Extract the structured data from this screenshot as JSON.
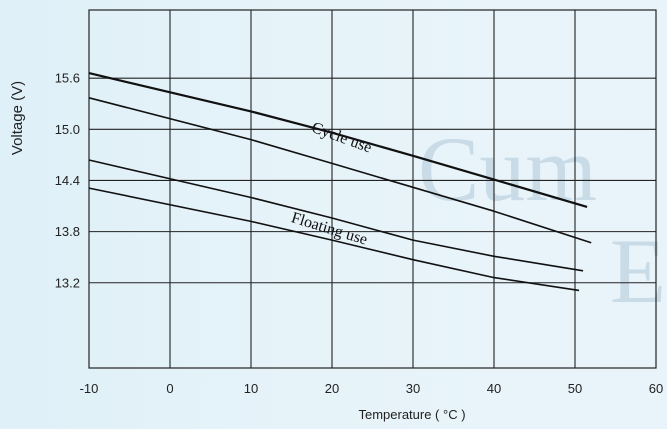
{
  "chart_data": {
    "type": "line",
    "title": "",
    "xlabel": "Temperature ( °C )",
    "ylabel": "Voltage (V)",
    "xlim": [
      -10,
      60
    ],
    "ylim": [
      12.2,
      16.4
    ],
    "x_ticks": [
      -10,
      0,
      10,
      20,
      30,
      40,
      50,
      60
    ],
    "y_ticks": [
      "15.6",
      "15.0",
      "14.4",
      "13.8",
      "13.2"
    ],
    "grid": true,
    "annotations": [
      {
        "text": "Cycle use",
        "x": 21,
        "y": 14.85,
        "angle": 20
      },
      {
        "text": "Floating use",
        "x": 19.5,
        "y": 13.78,
        "angle": 17
      }
    ],
    "series": [
      {
        "x": [
          -10,
          10,
          20,
          30,
          40,
          51.5
        ],
        "y": [
          15.66,
          15.21,
          14.96,
          14.69,
          14.41,
          14.09
        ]
      },
      {
        "x": [
          -10,
          10,
          20,
          30,
          40,
          52
        ],
        "y": [
          15.37,
          14.88,
          14.6,
          14.32,
          14.04,
          13.67
        ]
      },
      {
        "x": [
          -10,
          10,
          20,
          30,
          40,
          51
        ],
        "y": [
          14.64,
          14.2,
          13.96,
          13.7,
          13.51,
          13.34
        ]
      },
      {
        "x": [
          -10,
          10,
          20,
          30,
          40,
          50.5
        ],
        "y": [
          14.31,
          13.92,
          13.7,
          13.47,
          13.26,
          13.11
        ]
      }
    ]
  },
  "watermark": {
    "line1": "Cum",
    "line2": "E"
  }
}
